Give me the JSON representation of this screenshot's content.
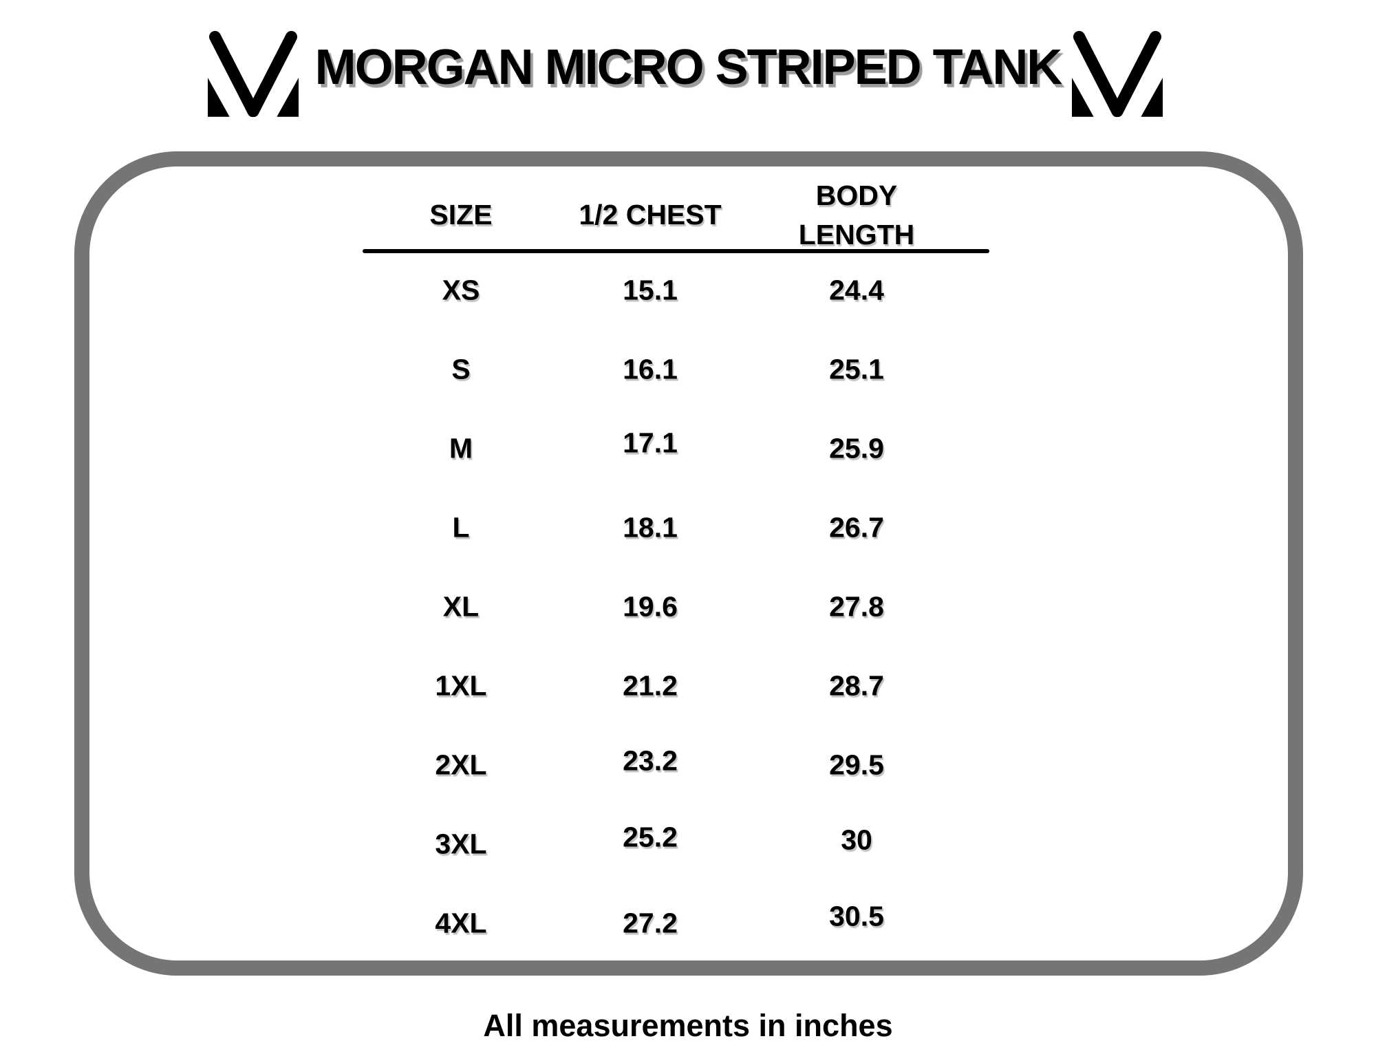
{
  "page": {
    "title": "MORGAN MICRO STRIPED TANK",
    "footer_note": "All measurements in inches"
  },
  "icons": {
    "left_logo": "mv-monogram-icon",
    "right_logo": "mv-monogram-icon"
  },
  "colors": {
    "background": "#ffffff",
    "text": "#000000",
    "title_shadow": "#9c9c9c",
    "frame_border": "#757575"
  },
  "size_chart": {
    "columns": [
      {
        "key": "size",
        "label": "SIZE"
      },
      {
        "key": "half_chest",
        "label": "1/2 CHEST"
      },
      {
        "key": "body_length",
        "label": "BODY LENGTH"
      }
    ],
    "rows": [
      {
        "size": "XS",
        "half_chest": "15.1",
        "body_length": "24.4"
      },
      {
        "size": "S",
        "half_chest": "16.1",
        "body_length": "25.1"
      },
      {
        "size": "M",
        "half_chest": "17.1",
        "body_length": "25.9"
      },
      {
        "size": "L",
        "half_chest": "18.1",
        "body_length": "26.7"
      },
      {
        "size": "XL",
        "half_chest": "19.6",
        "body_length": "27.8"
      },
      {
        "size": "1XL",
        "half_chest": "21.2",
        "body_length": "28.7"
      },
      {
        "size": "2XL",
        "half_chest": "23.2",
        "body_length": "29.5"
      },
      {
        "size": "3XL",
        "half_chest": "25.2",
        "body_length": "30"
      },
      {
        "size": "4XL",
        "half_chest": "27.2",
        "body_length": "30.5"
      }
    ],
    "units_note": "All measurements in inches"
  },
  "chart_data": {
    "type": "table",
    "title": "MORGAN MICRO STRIPED TANK",
    "columns": [
      "SIZE",
      "1/2 CHEST",
      "BODY LENGTH"
    ],
    "rows": [
      [
        "XS",
        15.1,
        24.4
      ],
      [
        "S",
        16.1,
        25.1
      ],
      [
        "M",
        17.1,
        25.9
      ],
      [
        "L",
        18.1,
        26.7
      ],
      [
        "XL",
        19.6,
        27.8
      ],
      [
        "1XL",
        21.2,
        28.7
      ],
      [
        "2XL",
        23.2,
        29.5
      ],
      [
        "3XL",
        25.2,
        30
      ],
      [
        "4XL",
        27.2,
        30.5
      ]
    ],
    "units": "inches"
  }
}
